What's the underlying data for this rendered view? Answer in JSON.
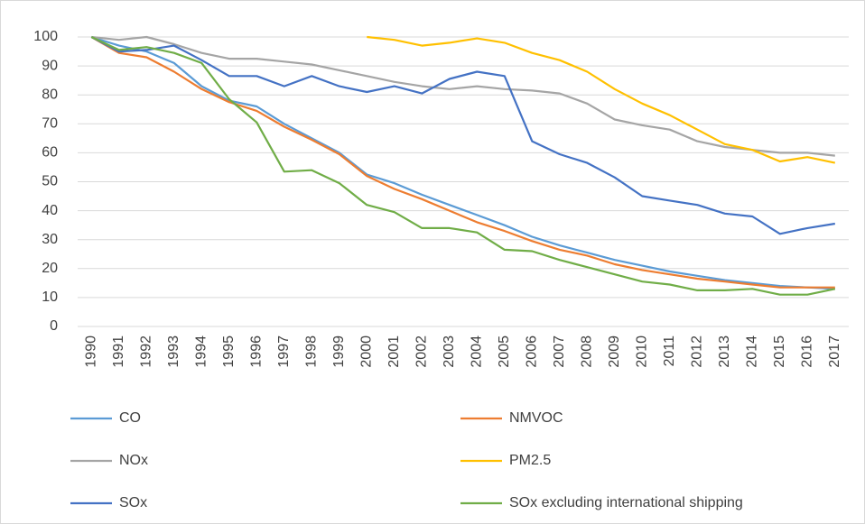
{
  "chart_data": {
    "type": "line",
    "categories": [
      "1990",
      "1991",
      "1992",
      "1993",
      "1994",
      "1995",
      "1996",
      "1997",
      "1998",
      "1999",
      "2000",
      "2001",
      "2002",
      "2003",
      "2004",
      "2005",
      "2006",
      "2007",
      "2008",
      "2009",
      "2010",
      "2011",
      "2012",
      "2013",
      "2014",
      "2015",
      "2016",
      "2017"
    ],
    "series": [
      {
        "name": "CO",
        "color": "#5b9bd5",
        "values": [
          100,
          97,
          95,
          91,
          83,
          78,
          76,
          70,
          65,
          60,
          52.5,
          49.5,
          45.5,
          42,
          38.5,
          35,
          31,
          28,
          25.5,
          23,
          21,
          19,
          17.5,
          16,
          15,
          14,
          13.5,
          13
        ]
      },
      {
        "name": "NMVOC",
        "color": "#ed7d31",
        "values": [
          100,
          94.5,
          93,
          88,
          82,
          77.5,
          74.5,
          69,
          64.5,
          59.5,
          52,
          47.5,
          44,
          40,
          36,
          33,
          29.5,
          26.5,
          24.5,
          21.5,
          19.5,
          18,
          16.5,
          15.5,
          14.5,
          13.5,
          13.5,
          13.5
        ]
      },
      {
        "name": "NOx",
        "color": "#a5a5a5",
        "values": [
          100,
          99,
          100,
          97.5,
          94.5,
          92.5,
          92.5,
          91.5,
          90.5,
          88.5,
          86.5,
          84.5,
          83,
          82,
          83,
          82,
          81.5,
          80.5,
          77,
          71.5,
          69.5,
          68,
          64,
          62,
          61,
          60,
          60,
          59
        ]
      },
      {
        "name": "PM2.5",
        "color": "#ffc000",
        "values": [
          null,
          null,
          null,
          null,
          null,
          null,
          null,
          null,
          null,
          null,
          100,
          99,
          97,
          98,
          99.5,
          98,
          94.5,
          92,
          88,
          82,
          77,
          73,
          68,
          63,
          61,
          57,
          58.5,
          56.5
        ]
      },
      {
        "name": "SOx",
        "color": "#4472c4",
        "values": [
          100,
          95,
          95.5,
          97,
          92,
          86.5,
          86.5,
          83,
          86.5,
          83,
          81,
          83,
          80.5,
          85.5,
          88,
          86.5,
          64,
          59.5,
          56.5,
          51.5,
          45,
          43.5,
          42,
          39,
          38,
          32,
          34,
          35.5
        ]
      },
      {
        "name": "SOx excluding international shipping",
        "color": "#70ad47",
        "values": [
          100,
          95.5,
          96.5,
          94.5,
          91,
          78.5,
          70.5,
          53.5,
          54,
          49.5,
          42,
          39.5,
          34,
          34,
          32.5,
          26.5,
          26,
          23,
          20.5,
          18,
          15.5,
          14.5,
          12.5,
          12.5,
          13,
          11,
          11,
          13
        ]
      }
    ],
    "ylim": [
      0,
      100
    ],
    "yticks": [
      0,
      10,
      20,
      30,
      40,
      50,
      60,
      70,
      80,
      90,
      100
    ],
    "grid": true,
    "legend": "bottom"
  }
}
